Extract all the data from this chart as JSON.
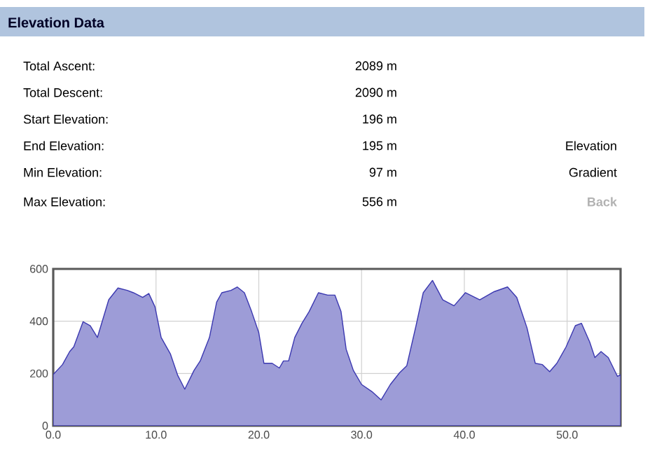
{
  "chart_data": {
    "type": "area",
    "title": "Elevation Data",
    "annotations": [
      "Total Ascent:",
      "2089 m",
      "Total Descent:",
      "2090 m",
      "Start Elevation:",
      "196 m",
      "End Elevation:",
      "195 m",
      "Min Elevation:",
      "97 m",
      "Max Elevation:",
      "556 m",
      "Elevation",
      "Gradient",
      "Back"
    ],
    "x": [
      0,
      0.9,
      1.6,
      2.0,
      2.9,
      3.6,
      4.3,
      5.4,
      6.3,
      7.2,
      7.8,
      8.7,
      9.3,
      9.9,
      10.5,
      11.4,
      12.1,
      12.8,
      13.7,
      14.3,
      15.2,
      15.9,
      16.4,
      17.3,
      17.9,
      18.6,
      19.3,
      20.0,
      20.5,
      21.3,
      22.0,
      22.4,
      22.9,
      23.5,
      24.2,
      24.9,
      25.8,
      26.7,
      27.4,
      28.0,
      28.5,
      29.2,
      30.0,
      31.0,
      31.9,
      32.8,
      33.7,
      34.4,
      35.3,
      36.0,
      36.9,
      37.9,
      39.0,
      40.1,
      41.5,
      42.9,
      44.2,
      45.1,
      46.1,
      46.9,
      47.6,
      48.3,
      49.0,
      49.9,
      50.8,
      51.4,
      52.2,
      52.7,
      53.3,
      54.0,
      54.9,
      55.2
    ],
    "series": [
      {
        "color": "#3b38b0",
        "values": [
          196,
          234,
          284,
          302,
          398,
          383,
          338,
          482,
          527,
          518,
          509,
          491,
          506,
          455,
          338,
          275,
          194,
          140,
          212,
          248,
          338,
          473,
          509,
          518,
          531,
          509,
          437,
          356,
          239,
          239,
          221,
          248,
          248,
          338,
          392,
          437,
          509,
          500,
          500,
          437,
          293,
          212,
          158,
          131,
          99,
          158,
          203,
          230,
          383,
          509,
          556,
          482,
          459,
          509,
          482,
          513,
          531,
          491,
          374,
          239,
          234,
          207,
          239,
          302,
          383,
          392,
          320,
          261,
          284,
          261,
          189,
          195
        ]
      }
    ],
    "xlim": [
      0,
      55.2
    ],
    "ylim": [
      0,
      600
    ],
    "xticks": [
      {
        "value": 0,
        "label": "0.0"
      },
      {
        "value": 10,
        "label": "10.0"
      },
      {
        "value": 20,
        "label": "20.0"
      },
      {
        "value": 30,
        "label": "30.0"
      },
      {
        "value": 40,
        "label": "40.0"
      },
      {
        "value": 50,
        "label": "50.0"
      }
    ],
    "yticks": [
      0,
      200,
      400,
      600
    ],
    "grid": true
  }
}
